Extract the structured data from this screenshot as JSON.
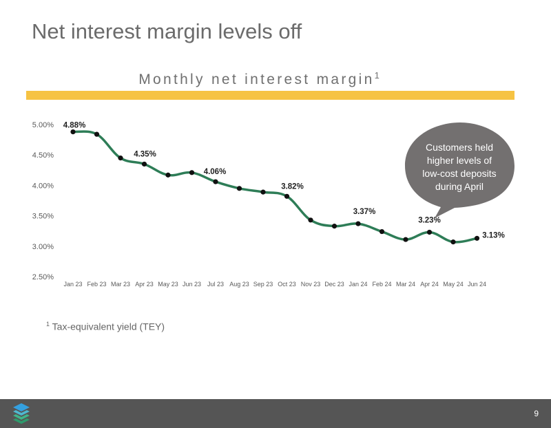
{
  "page": {
    "title": "Net interest margin levels off",
    "accent_color": "#f6c343",
    "page_number": "9"
  },
  "chart_title": {
    "text": "Monthly net interest margin",
    "sup": "1"
  },
  "footnote": {
    "sup": "1",
    "text": "Tax-equivalent yield (TEY)"
  },
  "callout": {
    "lines": [
      "Customers held",
      "higher levels of",
      "low-cost deposits",
      "during April"
    ],
    "color": "#737070"
  },
  "logo": {
    "icon": "stacked-layers-icon"
  },
  "chart_data": {
    "type": "line",
    "title": "Monthly net interest margin",
    "xlabel": "",
    "ylabel": "",
    "ylim": [
      2.5,
      5.0
    ],
    "yticks": [
      2.5,
      3.0,
      3.5,
      4.0,
      4.5,
      5.0
    ],
    "ytick_labels": [
      "2.50%",
      "3.00%",
      "3.50%",
      "4.00%",
      "4.50%",
      "5.00%"
    ],
    "grid": false,
    "line_color": "#2e7d57",
    "categories": [
      "Jan 23",
      "Feb 23",
      "Mar 23",
      "Apr 23",
      "May 23",
      "Jun 23",
      "Jul 23",
      "Aug 23",
      "Sep 23",
      "Oct 23",
      "Nov 23",
      "Dec 23",
      "Jan 24",
      "Feb 24",
      "Mar 24",
      "Apr 24",
      "May 24",
      "Jun 24"
    ],
    "values": [
      4.88,
      4.84,
      4.45,
      4.35,
      4.17,
      4.21,
      4.06,
      3.95,
      3.89,
      3.82,
      3.43,
      3.33,
      3.37,
      3.24,
      3.11,
      3.23,
      3.07,
      3.13
    ],
    "data_labels": [
      {
        "index": 0,
        "text": "4.88%"
      },
      {
        "index": 3,
        "text": "4.35%"
      },
      {
        "index": 6,
        "text": "4.06%"
      },
      {
        "index": 9,
        "text": "3.82%"
      },
      {
        "index": 12,
        "text": "3.37%"
      },
      {
        "index": 15,
        "text": "3.23%"
      },
      {
        "index": 17,
        "text": "3.13%"
      }
    ]
  }
}
